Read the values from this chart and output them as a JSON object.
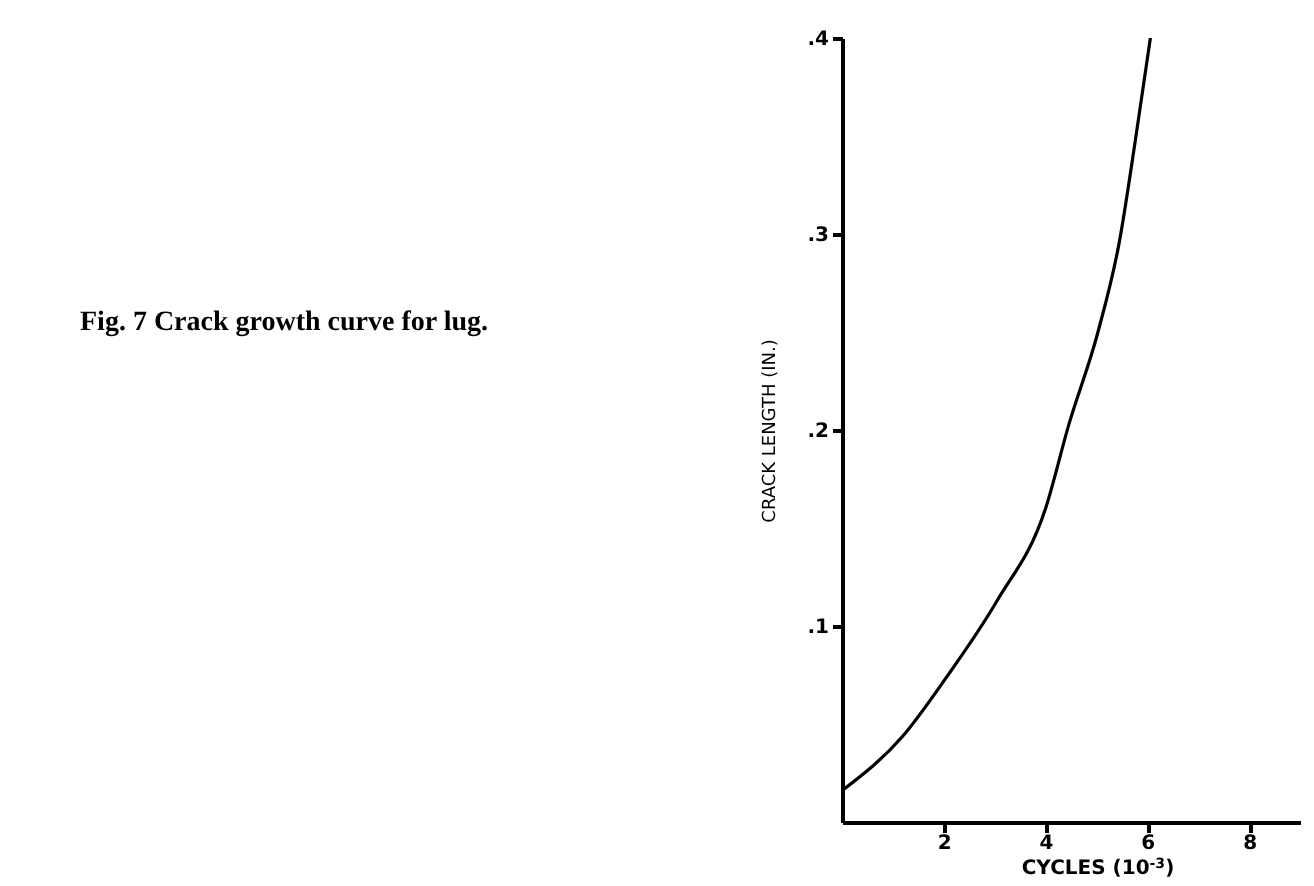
{
  "chart_data": {
    "type": "line",
    "title": "Fig. 7    Crack growth curve for lug.",
    "xlabel": "CYCLES (10$^{-3}$)",
    "ylabel": "CRACK LENGTH (IN.)",
    "x": [
      0,
      1.2,
      2.03,
      3.05,
      4.0,
      4.46,
      5.03,
      5.45,
      5.76,
      6.06
    ],
    "series": [
      {
        "color": "#000000",
        "values": [
          0.016,
          0.044,
          0.073,
          0.113,
          0.16,
          0.203,
          0.25,
          0.296,
          0.347,
          0.4
        ]
      }
    ],
    "xlim": [
      0,
      9
    ],
    "xticks": [
      2,
      4,
      6,
      8
    ],
    "ylim": [
      0,
      0.4
    ],
    "yticks": [
      {
        "value": 0.1,
        "label": ".1"
      },
      {
        "value": 0.2,
        "label": ".2"
      },
      {
        "value": 0.3,
        "label": ".3"
      },
      {
        "value": 0.4,
        "label": ".4"
      }
    ],
    "marker": "none",
    "line_style": "solid"
  }
}
